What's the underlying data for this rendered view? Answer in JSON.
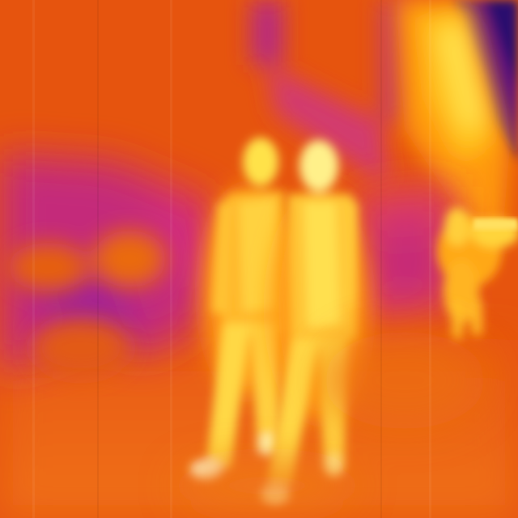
{
  "image": {
    "kind": "thermal-camera-frame",
    "palette": {
      "cold": "#2a0a6e",
      "cool": "#a020a0",
      "mid": "#d8208a",
      "warm": "#e8560c",
      "hot": "#ff9a10",
      "hotter": "#ffd020",
      "hottest": "#fff6a0"
    },
    "subjects": [
      {
        "name": "person-left",
        "temperature": "hot"
      },
      {
        "name": "person-right",
        "temperature": "hot"
      },
      {
        "name": "dog",
        "temperature": "hot"
      }
    ]
  }
}
